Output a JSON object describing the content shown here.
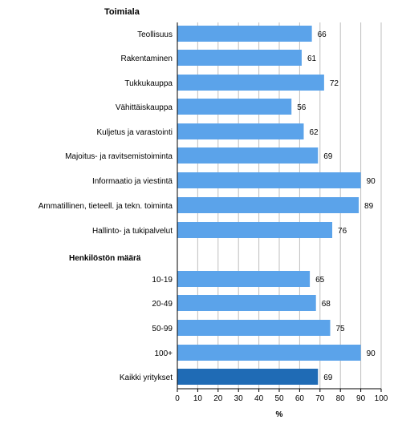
{
  "chart_data": {
    "type": "bar",
    "orientation": "horizontal",
    "section_headers": [
      "Toimiala",
      "Henkilöstön määrä"
    ],
    "categories": [
      "Teollisuus",
      "Rakentaminen",
      "Tukkukauppa",
      "Vähittäiskauppa",
      "Kuljetus ja varastointi",
      "Majoitus- ja ravitsemistoiminta",
      "Informaatio ja viestintä",
      "Ammatillinen, tieteell. ja tekn. toiminta",
      "Hallinto- ja tukipalvelut",
      "10-19",
      "20-49",
      "50-99",
      "100+",
      "Kaikki yritykset"
    ],
    "values": [
      66,
      61,
      72,
      56,
      62,
      69,
      90,
      89,
      76,
      65,
      68,
      75,
      90,
      69
    ],
    "groups": [
      0,
      0,
      0,
      0,
      0,
      0,
      0,
      0,
      0,
      1,
      1,
      1,
      1,
      1
    ],
    "highlight_index": 13,
    "xlabel": "%",
    "ylabel": "",
    "title": "",
    "xlim": [
      0,
      100
    ],
    "xticks": [
      0,
      10,
      20,
      30,
      40,
      50,
      60,
      70,
      80,
      90,
      100
    ],
    "grid": true,
    "legend": "none",
    "colors": {
      "bar": "#5ba3ea",
      "bar_highlight": "#1f6bb5",
      "grid": "#bfbfbf",
      "axis": "#000000"
    }
  }
}
